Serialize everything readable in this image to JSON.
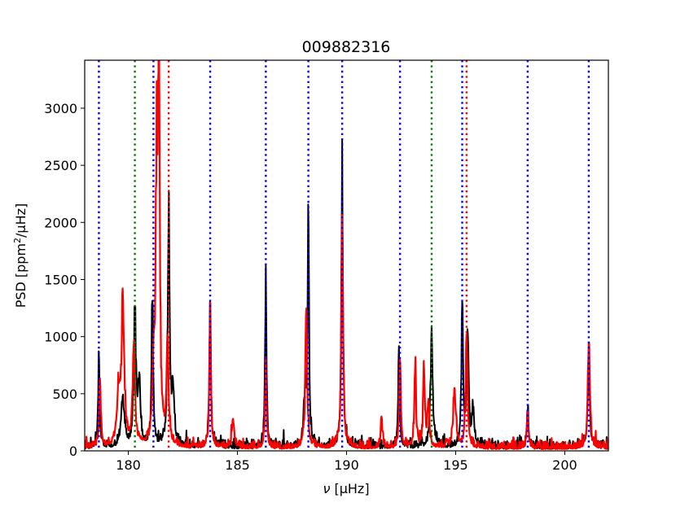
{
  "chart_data": {
    "type": "line",
    "title": "009882316",
    "xlabel_symbol": "ν",
    "xlabel_unit": "[μHz]",
    "ylabel_main": "PSD [ppm",
    "ylabel_sup": "2",
    "ylabel_tail": "/μHz]",
    "xlim": [
      178.0,
      202.0
    ],
    "ylim": [
      0,
      3420
    ],
    "xticks": [
      180,
      185,
      190,
      195,
      200
    ],
    "yticks": [
      0,
      500,
      1000,
      1500,
      2000,
      2500,
      3000
    ],
    "grid": false,
    "series": [
      {
        "color": "#000000",
        "baseline": 60,
        "peaks": [
          {
            "x": 178.65,
            "y": 770,
            "w": 0.04
          },
          {
            "x": 179.75,
            "y": 420,
            "w": 0.08
          },
          {
            "x": 180.3,
            "y": 1160,
            "w": 0.06
          },
          {
            "x": 180.5,
            "y": 560,
            "w": 0.06
          },
          {
            "x": 181.1,
            "y": 1450,
            "w": 0.04
          },
          {
            "x": 181.85,
            "y": 2250,
            "w": 0.05
          },
          {
            "x": 182.05,
            "y": 480,
            "w": 0.06
          },
          {
            "x": 183.75,
            "y": 1280,
            "w": 0.04
          },
          {
            "x": 186.3,
            "y": 1370,
            "w": 0.04
          },
          {
            "x": 188.25,
            "y": 1930,
            "w": 0.04
          },
          {
            "x": 188.1,
            "y": 460,
            "w": 0.06
          },
          {
            "x": 189.8,
            "y": 2580,
            "w": 0.04
          },
          {
            "x": 192.4,
            "y": 800,
            "w": 0.04
          },
          {
            "x": 193.9,
            "y": 950,
            "w": 0.06
          },
          {
            "x": 195.3,
            "y": 1310,
            "w": 0.04
          },
          {
            "x": 195.55,
            "y": 1030,
            "w": 0.05
          },
          {
            "x": 195.8,
            "y": 350,
            "w": 0.06
          },
          {
            "x": 198.3,
            "y": 360,
            "w": 0.04
          },
          {
            "x": 201.1,
            "y": 820,
            "w": 0.05
          }
        ]
      },
      {
        "color": "#ff0000",
        "baseline": 50,
        "peaks": [
          {
            "x": 178.7,
            "y": 620,
            "w": 0.04
          },
          {
            "x": 179.75,
            "y": 1320,
            "w": 0.07
          },
          {
            "x": 179.55,
            "y": 450,
            "w": 0.08
          },
          {
            "x": 180.25,
            "y": 880,
            "w": 0.06
          },
          {
            "x": 181.3,
            "y": 2260,
            "w": 0.06
          },
          {
            "x": 181.4,
            "y": 2950,
            "w": 0.05
          },
          {
            "x": 181.15,
            "y": 600,
            "w": 0.05
          },
          {
            "x": 181.8,
            "y": 920,
            "w": 0.05
          },
          {
            "x": 183.75,
            "y": 1290,
            "w": 0.04
          },
          {
            "x": 184.8,
            "y": 230,
            "w": 0.06
          },
          {
            "x": 186.3,
            "y": 700,
            "w": 0.04
          },
          {
            "x": 188.15,
            "y": 1250,
            "w": 0.05
          },
          {
            "x": 189.8,
            "y": 1790,
            "w": 0.05
          },
          {
            "x": 191.6,
            "y": 270,
            "w": 0.04
          },
          {
            "x": 192.45,
            "y": 820,
            "w": 0.04
          },
          {
            "x": 193.15,
            "y": 780,
            "w": 0.04
          },
          {
            "x": 193.55,
            "y": 770,
            "w": 0.04
          },
          {
            "x": 193.75,
            "y": 400,
            "w": 0.05
          },
          {
            "x": 194.95,
            "y": 520,
            "w": 0.07
          },
          {
            "x": 195.5,
            "y": 940,
            "w": 0.05
          },
          {
            "x": 198.3,
            "y": 300,
            "w": 0.04
          },
          {
            "x": 201.1,
            "y": 1010,
            "w": 0.05
          }
        ]
      }
    ],
    "vlines": [
      {
        "x": 178.65,
        "color": "#0000ff"
      },
      {
        "x": 180.3,
        "color": "#008000"
      },
      {
        "x": 181.15,
        "color": "#0000ff"
      },
      {
        "x": 181.85,
        "color": "#ff0000"
      },
      {
        "x": 183.75,
        "color": "#0000ff"
      },
      {
        "x": 186.3,
        "color": "#0000ff"
      },
      {
        "x": 188.25,
        "color": "#0000ff"
      },
      {
        "x": 189.8,
        "color": "#0000ff"
      },
      {
        "x": 192.45,
        "color": "#0000ff"
      },
      {
        "x": 193.9,
        "color": "#008000"
      },
      {
        "x": 195.3,
        "color": "#0000ff"
      },
      {
        "x": 195.5,
        "color": "#ff0000"
      },
      {
        "x": 198.3,
        "color": "#0000ff"
      },
      {
        "x": 201.1,
        "color": "#0000ff"
      }
    ]
  }
}
